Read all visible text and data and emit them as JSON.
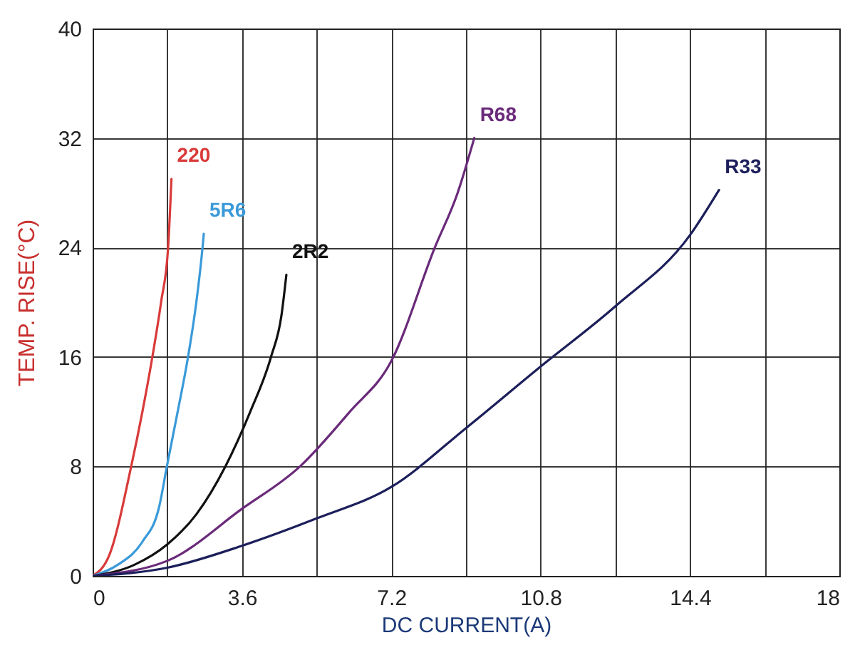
{
  "chart_data": {
    "type": "line",
    "xlabel": "DC CURRENT(A)",
    "ylabel": "TEMP. RISE(°C)",
    "xlim": [
      0,
      18
    ],
    "ylim": [
      0,
      40
    ],
    "xticks": [
      0,
      {
        "value": 1.8,
        "label": null
      },
      3.6,
      {
        "value": 5.4,
        "label": null
      },
      7.2,
      {
        "value": 9,
        "label": null
      },
      10.8,
      {
        "value": 12.6,
        "label": null
      },
      14.4,
      {
        "value": 16.2,
        "label": null
      },
      18
    ],
    "yticks": [
      0,
      8,
      16,
      24,
      32,
      40
    ],
    "grid": true,
    "legend": false,
    "marker": "none",
    "line_style": "solid",
    "series": [
      {
        "name": "220",
        "color": "#d93a3a",
        "x": [
          0,
          0.4,
          0.93,
          1.2,
          1.44,
          1.65,
          1.82,
          1.9
        ],
        "values": [
          0,
          1.5,
          8,
          12,
          16,
          20,
          24,
          29
        ]
      },
      {
        "name": "5R6",
        "color": "#3a9ad9",
        "x": [
          0,
          0.6,
          1.2,
          1.6,
          1.79,
          2.05,
          2.3,
          2.5,
          2.65,
          2.68
        ],
        "values": [
          0,
          0.8,
          2.5,
          5,
          8,
          12,
          16,
          20,
          24,
          25
        ]
      },
      {
        "name": "2R2",
        "color": "#111111",
        "x": [
          0,
          1,
          1.8,
          2.5,
          3.2,
          3.8,
          4.3,
          4.55,
          4.67
        ],
        "values": [
          0,
          0.8,
          2.3,
          4.5,
          8,
          12,
          16,
          19,
          22
        ]
      },
      {
        "name": "R68",
        "color": "#6a2a7a",
        "x": [
          0,
          1.8,
          3.6,
          5,
          6.2,
          7.2,
          8.25,
          8.8,
          9.2
        ],
        "values": [
          0,
          1.1,
          4.9,
          8,
          12,
          15.7,
          24,
          28,
          32
        ]
      },
      {
        "name": "R33",
        "color": "#1c1f5a",
        "x": [
          0,
          1.8,
          3.6,
          5.4,
          7.2,
          9,
          10.8,
          12.6,
          14.4,
          15.1
        ],
        "values": [
          0,
          0.6,
          2.2,
          4.2,
          6.5,
          10.8,
          15.3,
          19.7,
          24.9,
          28.2
        ]
      }
    ]
  }
}
